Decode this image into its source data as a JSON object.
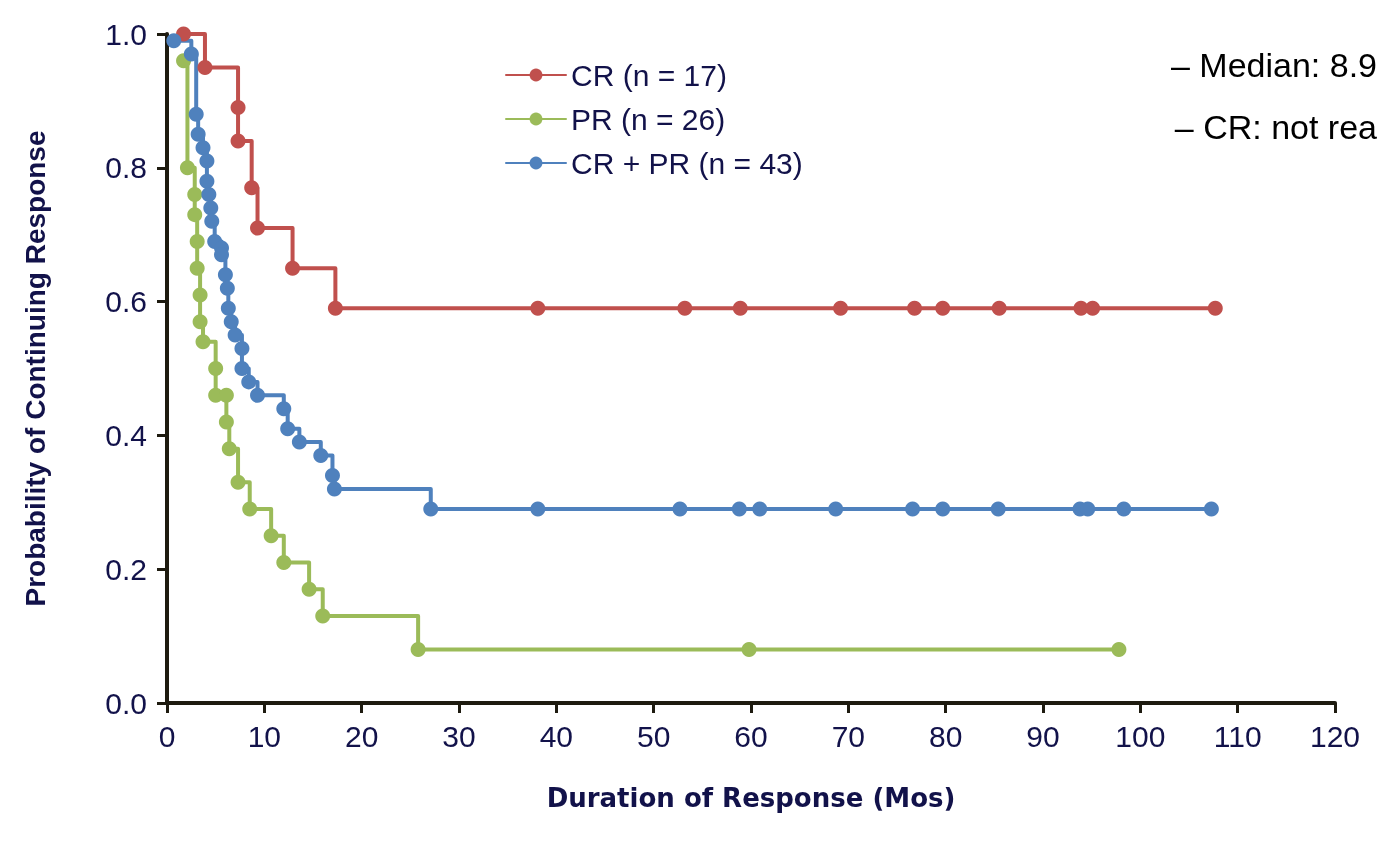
{
  "chart_data": {
    "type": "step",
    "xlabel": "Duration of Response (Mos)",
    "ylabel": "Probability of Continuing Response",
    "xlim": [
      0,
      120
    ],
    "xticks": [
      0,
      10,
      20,
      30,
      40,
      50,
      60,
      70,
      80,
      90,
      100,
      110,
      120
    ],
    "ylim": [
      0,
      1
    ],
    "yticks": [
      {
        "value": 0,
        "label": "0.0"
      },
      0.2,
      0.4,
      0.6,
      0.8,
      {
        "value": 1,
        "label": "1.0"
      }
    ],
    "grid": false,
    "legend": "top",
    "marker": "circle",
    "line_style": "solid",
    "annotations": [
      "– Median: 8.9",
      "– CR: not rea"
    ],
    "series": [
      {
        "name": "CR (n = 17)",
        "color": "#c0504d",
        "x": [
          1.7,
          3.9,
          7.3,
          7.3,
          8.7,
          9.3,
          12.9,
          17.3,
          38.1,
          53.2,
          58.9,
          69.2,
          76.8,
          79.7,
          85.5,
          93.9,
          95.1,
          107.7
        ],
        "values": [
          1.0,
          0.95,
          0.89,
          0.84,
          0.77,
          0.71,
          0.65,
          0.59,
          0.59,
          0.59,
          0.59,
          0.59,
          0.59,
          0.59,
          0.59,
          0.59,
          0.59,
          0.59
        ]
      },
      {
        "name": "PR (n = 26)",
        "color": "#9bbb59",
        "x": [
          1.7,
          2.1,
          2.85,
          2.85,
          3.1,
          3.1,
          3.4,
          3.4,
          3.7,
          5.0,
          5.0,
          6.1,
          6.1,
          6.4,
          7.3,
          8.5,
          10.7,
          12.0,
          14.6,
          16.0,
          25.8,
          59.8,
          97.8
        ],
        "values": [
          0.96,
          0.8,
          0.76,
          0.73,
          0.69,
          0.65,
          0.61,
          0.57,
          0.54,
          0.5,
          0.46,
          0.46,
          0.42,
          0.38,
          0.33,
          0.29,
          0.25,
          0.21,
          0.17,
          0.13,
          0.08,
          0.08,
          0.08
        ]
      },
      {
        "name": "CR + PR (n = 43)",
        "color": "#4f81bd",
        "x": [
          0.7,
          2.5,
          3.0,
          3.2,
          3.7,
          4.1,
          4.1,
          4.3,
          4.5,
          4.6,
          4.9,
          5.6,
          5.6,
          6.0,
          6.2,
          6.3,
          6.6,
          7.0,
          7.7,
          7.7,
          8.4,
          9.3,
          12.0,
          12.4,
          13.6,
          15.8,
          17.0,
          17.2,
          27.1,
          38.1,
          52.7,
          58.8,
          60.9,
          68.7,
          76.6,
          79.7,
          85.4,
          93.8,
          94.6,
          98.3,
          107.3
        ],
        "values": [
          0.99,
          0.97,
          0.88,
          0.85,
          0.83,
          0.81,
          0.78,
          0.76,
          0.74,
          0.72,
          0.69,
          0.68,
          0.67,
          0.64,
          0.62,
          0.59,
          0.57,
          0.55,
          0.53,
          0.5,
          0.48,
          0.46,
          0.44,
          0.41,
          0.39,
          0.37,
          0.34,
          0.32,
          0.29,
          0.29,
          0.29,
          0.29,
          0.29,
          0.29,
          0.29,
          0.29,
          0.29,
          0.29,
          0.29,
          0.29,
          0.29
        ]
      }
    ]
  }
}
